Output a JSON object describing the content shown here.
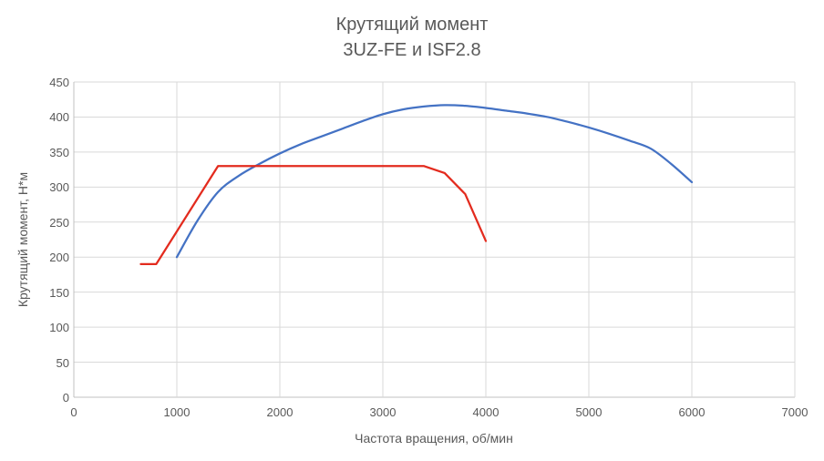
{
  "title": {
    "line1": "Крутящий момент",
    "line2": "3UZ-FE и ISF2.8"
  },
  "chart_data": {
    "type": "line",
    "title": "Крутящий момент 3UZ-FE и ISF2.8",
    "xlabel": "Частота вращения, об/мин",
    "ylabel": "Крутящий момент, Н*м",
    "xlim": [
      0,
      7000
    ],
    "ylim": [
      0,
      450
    ],
    "x_ticks": [
      0,
      1000,
      2000,
      3000,
      4000,
      5000,
      6000,
      7000
    ],
    "y_ticks": [
      0,
      50,
      100,
      150,
      200,
      250,
      300,
      350,
      400,
      450
    ],
    "grid": true,
    "legend_position": "none",
    "series": [
      {
        "name": "3UZ-FE",
        "color": "#4472c4",
        "smooth": true,
        "points": [
          [
            1000,
            200
          ],
          [
            1200,
            252
          ],
          [
            1400,
            293
          ],
          [
            1600,
            316
          ],
          [
            1800,
            333
          ],
          [
            2000,
            348
          ],
          [
            2200,
            361
          ],
          [
            2400,
            372
          ],
          [
            2600,
            383
          ],
          [
            2800,
            394
          ],
          [
            3000,
            404
          ],
          [
            3200,
            411
          ],
          [
            3400,
            415
          ],
          [
            3600,
            417
          ],
          [
            3800,
            416
          ],
          [
            4000,
            413
          ],
          [
            4200,
            409
          ],
          [
            4400,
            405
          ],
          [
            4600,
            400
          ],
          [
            4800,
            393
          ],
          [
            5000,
            385
          ],
          [
            5200,
            376
          ],
          [
            5400,
            366
          ],
          [
            5600,
            355
          ],
          [
            5800,
            333
          ],
          [
            6000,
            307
          ]
        ]
      },
      {
        "name": "ISF2.8",
        "color": "#e32b1e",
        "smooth": false,
        "points": [
          [
            650,
            190
          ],
          [
            800,
            190
          ],
          [
            1400,
            330
          ],
          [
            3400,
            330
          ],
          [
            3600,
            320
          ],
          [
            3800,
            290
          ],
          [
            4000,
            223
          ]
        ]
      }
    ],
    "colors": {
      "gridline": "#d9d9d9",
      "axis_line": "#c0c0c0",
      "text": "#595959",
      "background": "#ffffff"
    }
  }
}
